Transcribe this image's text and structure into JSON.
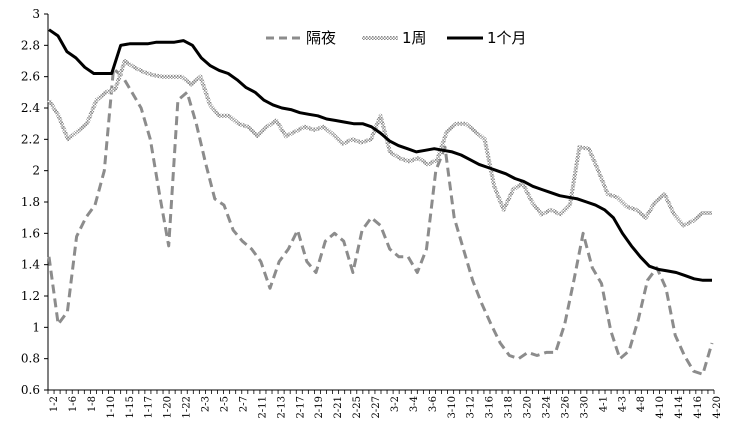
{
  "chart_data": {
    "type": "line",
    "ylim": [
      0.6,
      3
    ],
    "yticks": [
      3,
      2.8,
      2.6,
      2.4,
      2.2,
      2,
      1.8,
      1.6,
      1.4,
      1.2,
      1,
      0.8,
      0.6
    ],
    "ytick_labels": [
      "3",
      "2.8",
      "2.6",
      "2.4",
      "2.2",
      "2",
      "1.8",
      "1.6",
      "1.4",
      "1.2",
      "1",
      "0.8",
      "0.6"
    ],
    "grid": false,
    "legend": {
      "position": "top-center"
    },
    "x_tick_labels": [
      "1-2",
      "1-6",
      "1-8",
      "1-10",
      "1-15",
      "1-17",
      "1-20",
      "1-22",
      "2-3",
      "2-5",
      "2-7",
      "2-11",
      "2-13",
      "2-17",
      "2-19",
      "2-21",
      "2-25",
      "2-27",
      "3-2",
      "3-4",
      "3-6",
      "3-10",
      "3-12",
      "3-16",
      "3-18",
      "3-20",
      "3-24",
      "3-26",
      "3-30",
      "4-1",
      "4-3",
      "4-8",
      "4-10",
      "4-14",
      "4-16",
      "4-20"
    ],
    "series": [
      {
        "name": "隔夜",
        "style": "dashed",
        "color": "#8c8c8c",
        "values": [
          1.45,
          1.02,
          1.1,
          1.58,
          1.7,
          1.78,
          2.0,
          2.65,
          2.6,
          2.5,
          2.4,
          2.2,
          1.85,
          1.52,
          2.45,
          2.5,
          2.3,
          2.05,
          1.82,
          1.78,
          1.62,
          1.55,
          1.5,
          1.42,
          1.25,
          1.42,
          1.5,
          1.62,
          1.42,
          1.35,
          1.55,
          1.6,
          1.55,
          1.35,
          1.62,
          1.7,
          1.65,
          1.5,
          1.45,
          1.45,
          1.35,
          1.5,
          2.0,
          2.15,
          1.7,
          1.5,
          1.3,
          1.15,
          1.02,
          0.9,
          0.82,
          0.8,
          0.84,
          0.82,
          0.84,
          0.84,
          1.02,
          1.3,
          1.6,
          1.38,
          1.28,
          0.98,
          0.8,
          0.85,
          1.05,
          1.3,
          1.38,
          1.25,
          0.95,
          0.82,
          0.72,
          0.7,
          0.9
        ]
      },
      {
        "name": "1周",
        "style": "hatched",
        "color": "#9a9a9a",
        "values": [
          2.45,
          2.35,
          2.2,
          2.25,
          2.3,
          2.45,
          2.5,
          2.52,
          2.7,
          2.66,
          2.63,
          2.61,
          2.6,
          2.6,
          2.6,
          2.55,
          2.6,
          2.42,
          2.35,
          2.35,
          2.3,
          2.28,
          2.22,
          2.28,
          2.32,
          2.22,
          2.25,
          2.28,
          2.26,
          2.28,
          2.23,
          2.17,
          2.2,
          2.18,
          2.2,
          2.35,
          2.12,
          2.08,
          2.06,
          2.08,
          2.04,
          2.07,
          2.25,
          2.3,
          2.3,
          2.25,
          2.2,
          1.9,
          1.75,
          1.88,
          1.92,
          1.8,
          1.72,
          1.75,
          1.72,
          1.78,
          2.15,
          2.14,
          2.0,
          1.85,
          1.83,
          1.77,
          1.75,
          1.7,
          1.8,
          1.85,
          1.72,
          1.65,
          1.68,
          1.73,
          1.73
        ]
      },
      {
        "name": "1个月",
        "style": "solid",
        "color": "#000000",
        "values": [
          2.9,
          2.86,
          2.76,
          2.72,
          2.66,
          2.62,
          2.62,
          2.62,
          2.8,
          2.81,
          2.81,
          2.81,
          2.82,
          2.82,
          2.82,
          2.83,
          2.8,
          2.72,
          2.67,
          2.64,
          2.62,
          2.58,
          2.53,
          2.5,
          2.45,
          2.42,
          2.4,
          2.39,
          2.37,
          2.36,
          2.35,
          2.33,
          2.32,
          2.31,
          2.3,
          2.3,
          2.28,
          2.24,
          2.19,
          2.16,
          2.14,
          2.12,
          2.13,
          2.14,
          2.13,
          2.12,
          2.1,
          2.07,
          2.04,
          2.02,
          2.0,
          1.98,
          1.95,
          1.93,
          1.9,
          1.88,
          1.86,
          1.84,
          1.83,
          1.82,
          1.8,
          1.78,
          1.75,
          1.7,
          1.6,
          1.52,
          1.45,
          1.39,
          1.37,
          1.36,
          1.35,
          1.33,
          1.31,
          1.3,
          1.3
        ]
      }
    ]
  }
}
